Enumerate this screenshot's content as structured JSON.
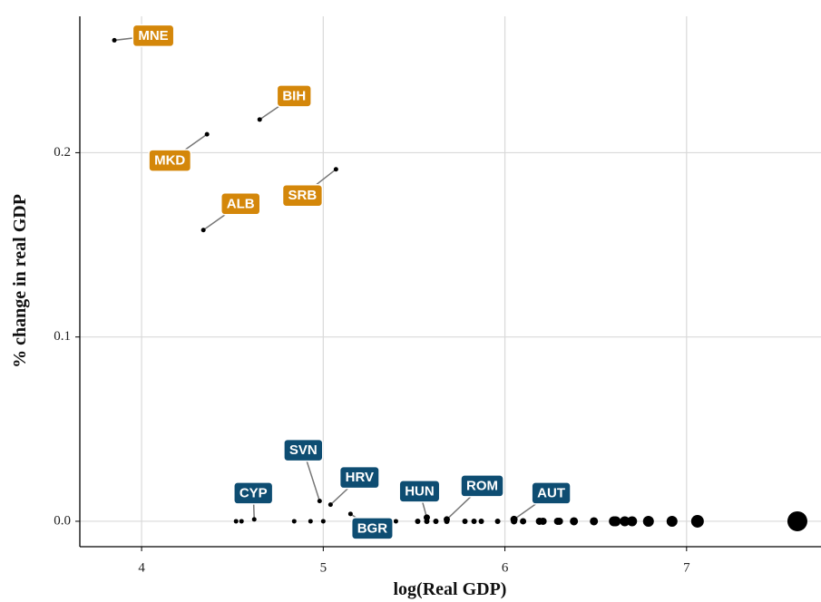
{
  "chart_data": {
    "type": "scatter",
    "x_label": "log(Real GDP)",
    "y_label": "% change in real GDP",
    "xlim": [
      3.66,
      7.74
    ],
    "ylim": [
      -0.0138,
      0.274
    ],
    "xticks": [
      4,
      5,
      6,
      7
    ],
    "yticks": [
      {
        "value": 0,
        "label": "0.0"
      },
      0.1,
      0.2
    ],
    "grid": true,
    "point_color": "#000000",
    "x": [
      3.85,
      4.65,
      4.36,
      5.07,
      4.34,
      4.98,
      5.04,
      4.62,
      5.15,
      5.57,
      5.68,
      6.05,
      4.52,
      4.55,
      4.84,
      4.93,
      5.0,
      5.4,
      5.52,
      5.57,
      5.62,
      5.68,
      5.78,
      5.83,
      5.87,
      5.96,
      6.05,
      6.1,
      6.19,
      6.21,
      6.29,
      6.3,
      6.38,
      6.49,
      6.6,
      6.61,
      6.66,
      6.7,
      6.79,
      6.92,
      7.06,
      7.61
    ],
    "y": [
      0.261,
      0.218,
      0.21,
      0.191,
      0.158,
      0.011,
      0.009,
      0.001,
      0.004,
      0.002,
      0.001,
      0.001,
      0,
      0,
      0,
      0,
      0,
      0,
      0,
      0,
      0,
      0,
      0,
      0,
      0,
      0,
      0,
      0,
      0,
      0,
      0,
      0,
      0,
      0,
      0,
      0,
      0,
      0,
      0,
      0,
      0,
      0
    ],
    "size": [
      2.5,
      2.5,
      2.5,
      2.5,
      2.5,
      2.5,
      2.5,
      2.5,
      2.5,
      3.5,
      3.5,
      4,
      2.5,
      2.5,
      2.5,
      2.5,
      2.5,
      2.5,
      3,
      3,
      3,
      3,
      3,
      3,
      3,
      3,
      3.5,
      3.5,
      4,
      4,
      4,
      4,
      4.5,
      4.5,
      5.5,
      5.5,
      5.5,
      5.5,
      6,
      6,
      7,
      11
    ],
    "labels": [
      "MNE",
      "BIH",
      "MKD",
      "SRB",
      "ALB",
      "SVN",
      "HRV",
      "CYP",
      "BGR",
      "HUN",
      "ROM",
      "AUT"
    ],
    "label_colors": [
      "#d4870a",
      "#d4870a",
      "#d4870a",
      "#d4870a",
      "#d4870a",
      "#0e4d72",
      "#0e4d72",
      "#0e4d72",
      "#0e4d72",
      "#0e4d72",
      "#0e4d72",
      "#0e4d72"
    ]
  }
}
